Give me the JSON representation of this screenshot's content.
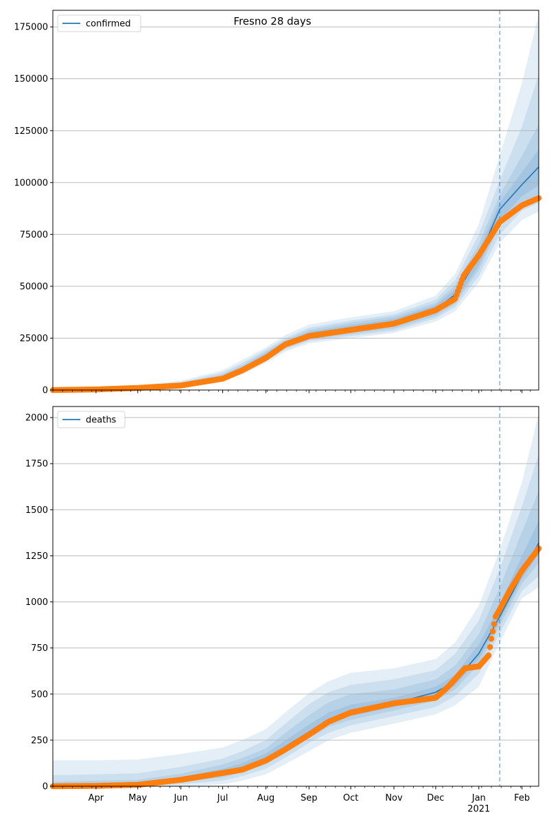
{
  "title": "Fresno 28 days",
  "chart_data": [
    {
      "type": "line",
      "name": "confirmed",
      "legend": [
        "confirmed"
      ],
      "legend_position": "top-left",
      "grid": "horizontal",
      "ylim": [
        0,
        183000
      ],
      "yticks": [
        0,
        25000,
        50000,
        75000,
        100000,
        125000,
        150000,
        175000
      ],
      "ytick_labels": [
        "0",
        "25000",
        "50000",
        "75000",
        "100000",
        "125000",
        "150000",
        "175000"
      ],
      "forecast_start": "2021-01-16",
      "model": {
        "x": [
          "2020-03-01",
          "2020-04-01",
          "2020-05-01",
          "2020-06-01",
          "2020-07-01",
          "2020-07-15",
          "2020-08-01",
          "2020-08-15",
          "2020-09-01",
          "2020-10-01",
          "2020-11-01",
          "2020-12-01",
          "2020-12-15",
          "2021-01-01",
          "2021-01-16",
          "2021-02-01",
          "2021-02-13"
        ],
        "y": [
          0,
          400,
          1200,
          2500,
          6000,
          10000,
          16500,
          22000,
          26500,
          29500,
          32500,
          39000,
          46000,
          64000,
          87000,
          99000,
          107500
        ]
      },
      "observed": {
        "x": [
          "2020-03-01",
          "2020-04-01",
          "2020-05-01",
          "2020-06-01",
          "2020-07-01",
          "2020-07-15",
          "2020-08-01",
          "2020-08-15",
          "2020-09-01",
          "2020-10-01",
          "2020-11-01",
          "2020-12-01",
          "2020-12-15",
          "2020-12-21",
          "2021-01-01",
          "2021-01-16",
          "2021-02-01",
          "2021-02-13"
        ],
        "y": [
          0,
          300,
          1000,
          2200,
          5500,
          9500,
          15500,
          22000,
          26000,
          29000,
          32000,
          38500,
          44000,
          55000,
          65000,
          81000,
          89000,
          92500
        ]
      },
      "bands": [
        {
          "lower": [
            0,
            150,
            500,
            1500,
            4200,
            7500,
            13000,
            18500,
            22500,
            25000,
            27500,
            33000,
            38000,
            52000,
            71000,
            82000,
            86000
          ],
          "upper": [
            0,
            900,
            2300,
            4500,
            9500,
            14500,
            20500,
            26500,
            31500,
            35000,
            38000,
            45500,
            56000,
            80000,
            113000,
            148000,
            181000
          ]
        },
        {
          "lower": [
            0,
            200,
            650,
            1800,
            4700,
            8200,
            14000,
            19500,
            23500,
            26000,
            28500,
            34500,
            40000,
            55000,
            75000,
            86500,
            90000
          ],
          "upper": [
            0,
            750,
            1900,
            3800,
            8500,
            13000,
            19500,
            25000,
            30000,
            33500,
            36500,
            43500,
            53000,
            75000,
            101000,
            127000,
            152000
          ]
        },
        {
          "lower": [
            0,
            260,
            800,
            2050,
            5100,
            8800,
            14700,
            20300,
            24300,
            26900,
            29600,
            35600,
            41500,
            58000,
            79000,
            90000,
            94000
          ],
          "upper": [
            0,
            620,
            1600,
            3300,
            7500,
            12000,
            18500,
            24000,
            29000,
            32500,
            35500,
            42000,
            50500,
            70500,
            94000,
            113000,
            128000
          ]
        },
        {
          "lower": [
            0,
            320,
            950,
            2200,
            5400,
            9200,
            15300,
            21000,
            25000,
            27800,
            30500,
            36700,
            43000,
            60000,
            82000,
            93500,
            98500
          ],
          "upper": [
            0,
            500,
            1400,
            2900,
            6800,
            11000,
            17700,
            23200,
            28000,
            31300,
            34300,
            40900,
            48600,
            67200,
            90500,
            105000,
            116000
          ]
        }
      ]
    },
    {
      "type": "line",
      "name": "deaths",
      "legend": [
        "deaths"
      ],
      "legend_position": "top-left",
      "grid": "horizontal",
      "ylim": [
        0,
        2060
      ],
      "yticks": [
        0,
        250,
        500,
        750,
        1000,
        1250,
        1500,
        1750,
        2000
      ],
      "ytick_labels": [
        "0",
        "250",
        "500",
        "750",
        "1000",
        "1250",
        "1500",
        "1750",
        "2000"
      ],
      "forecast_start": "2021-01-16",
      "xtick_labels": [
        "Apr",
        "May",
        "Jun",
        "Jul",
        "Aug",
        "Sep",
        "Oct",
        "Nov",
        "Dec",
        "Jan\n2021",
        "Feb"
      ],
      "xtick_dates": [
        "2020-04-01",
        "2020-05-01",
        "2020-06-01",
        "2020-07-01",
        "2020-08-01",
        "2020-09-01",
        "2020-10-01",
        "2020-11-01",
        "2020-12-01",
        "2021-01-01",
        "2021-02-01"
      ],
      "model": {
        "x": [
          "2020-03-01",
          "2020-04-01",
          "2020-05-01",
          "2020-06-01",
          "2020-07-01",
          "2020-07-15",
          "2020-08-01",
          "2020-08-15",
          "2020-09-01",
          "2020-09-15",
          "2020-10-01",
          "2020-11-01",
          "2020-12-01",
          "2020-12-15",
          "2021-01-01",
          "2021-01-16",
          "2021-02-01",
          "2021-02-13"
        ],
        "y": [
          0,
          3,
          10,
          35,
          75,
          100,
          150,
          215,
          295,
          360,
          400,
          450,
          510,
          570,
          720,
          920,
          1150,
          1320
        ]
      },
      "observed": {
        "x": [
          "2020-03-01",
          "2020-04-01",
          "2020-05-01",
          "2020-06-01",
          "2020-07-01",
          "2020-07-15",
          "2020-08-01",
          "2020-08-15",
          "2020-09-01",
          "2020-09-15",
          "2020-10-01",
          "2020-11-01",
          "2020-12-01",
          "2020-12-10",
          "2020-12-22",
          "2021-01-01",
          "2021-01-08",
          "2021-01-10",
          "2021-01-13",
          "2021-01-16",
          "2021-01-23",
          "2021-02-01",
          "2021-02-13"
        ],
        "y": [
          0,
          2,
          8,
          35,
          72,
          90,
          140,
          200,
          280,
          350,
          400,
          450,
          480,
          540,
          640,
          650,
          710,
          800,
          920,
          960,
          1060,
          1170,
          1290
        ]
      },
      "bands": [
        {
          "lower": [
            0,
            0,
            0,
            0,
            10,
            30,
            65,
            120,
            190,
            250,
            290,
            340,
            390,
            440,
            540,
            780,
            1020,
            1080
          ],
          "upper": [
            140,
            140,
            145,
            175,
            210,
            250,
            310,
            400,
            505,
            570,
            615,
            640,
            690,
            780,
            980,
            1280,
            1650,
            2020
          ]
        },
        {
          "lower": [
            0,
            0,
            0,
            10,
            30,
            55,
            95,
            155,
            235,
            290,
            330,
            380,
            430,
            490,
            610,
            830,
            1060,
            1140
          ],
          "upper": [
            60,
            65,
            70,
            105,
            150,
            190,
            250,
            340,
            445,
            510,
            550,
            580,
            630,
            720,
            900,
            1180,
            1520,
            1800
          ]
        },
        {
          "lower": [
            0,
            0,
            3,
            20,
            48,
            75,
            118,
            180,
            260,
            322,
            360,
            410,
            465,
            525,
            660,
            870,
            1100,
            1210
          ],
          "upper": [
            25,
            30,
            35,
            68,
            118,
            153,
            205,
            290,
            385,
            455,
            500,
            525,
            580,
            655,
            825,
            1080,
            1380,
            1600
          ]
        },
        {
          "lower": [
            0,
            1,
            5,
            27,
            60,
            86,
            132,
            197,
            278,
            340,
            380,
            430,
            487,
            547,
            690,
            895,
            1125,
            1260
          ],
          "upper": [
            12,
            15,
            20,
            50,
            95,
            125,
            178,
            248,
            335,
            400,
            442,
            480,
            540,
            605,
            770,
            985,
            1250,
            1440
          ]
        }
      ]
    }
  ]
}
